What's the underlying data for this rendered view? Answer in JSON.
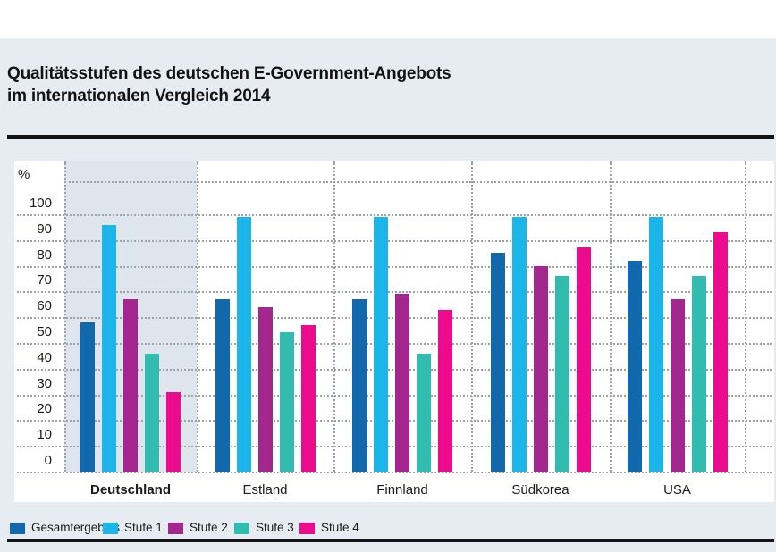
{
  "header": {
    "title_line1": "Qualitätsstufen des deutschen E-Government-Angebots",
    "title_line2": "im internationalen Vergleich 2014"
  },
  "axis": {
    "unit_label": "%",
    "ticks": [
      100,
      90,
      80,
      70,
      60,
      50,
      40,
      30,
      20,
      10,
      0
    ]
  },
  "chart_data": {
    "type": "bar",
    "title": "Qualitätsstufen des deutschen E-Government-Angebots im internationalen Vergleich 2014",
    "xlabel": "",
    "ylabel": "%",
    "ylim": [
      0,
      100
    ],
    "ytick_step": 10,
    "grid": "dotted",
    "legend_position": "bottom",
    "categories": [
      "Deutschland",
      "Estland",
      "Finnland",
      "Südkorea",
      "USA"
    ],
    "highlighted_category": "Deutschland",
    "series": [
      {
        "name": "Gesamtergebnis",
        "color": "#1268ad",
        "values": [
          58,
          67,
          67,
          85,
          82
        ]
      },
      {
        "name": "Stufe 1",
        "color": "#1cb5ea",
        "values": [
          96,
          99,
          99,
          99,
          99
        ]
      },
      {
        "name": "Stufe 2",
        "color": "#a3278f",
        "values": [
          67,
          64,
          69,
          80,
          67
        ]
      },
      {
        "name": "Stufe 3",
        "color": "#32bcb0",
        "values": [
          46,
          54,
          46,
          76,
          76
        ]
      },
      {
        "name": "Stufe 4",
        "color": "#ec0b8c",
        "values": [
          31,
          57,
          63,
          87,
          93
        ]
      }
    ]
  },
  "colors": {
    "panel_background": "#e6ecf2",
    "plot_background": "#ffffff",
    "highlight_band": "#dee5ed",
    "grid_dots": "#9aa2ab",
    "rule": "#141414",
    "text": "#1a1a1a"
  }
}
